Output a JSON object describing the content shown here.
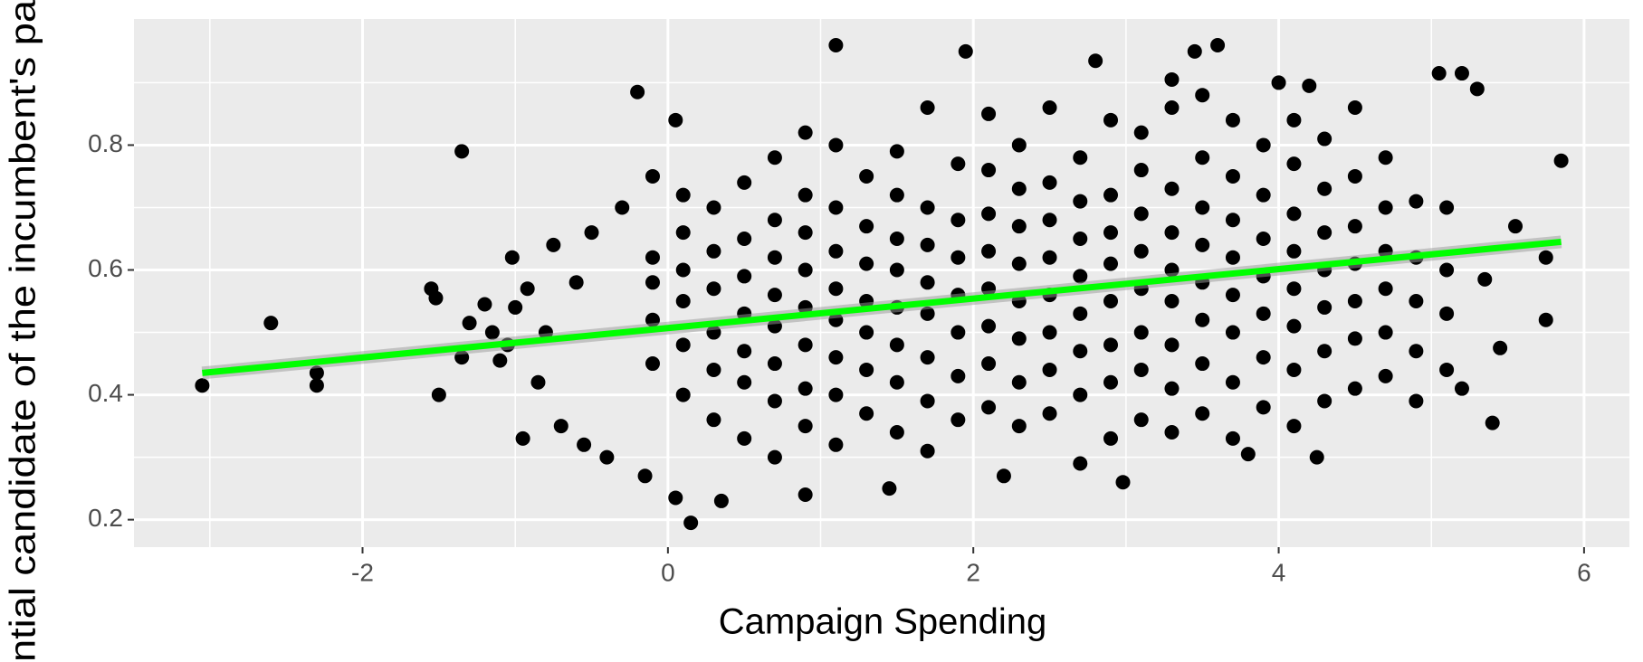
{
  "chart_data": {
    "type": "scatter",
    "x_label": "Campaign Spending",
    "y_label": "ntial candidate of the incumbent's pa",
    "color": "#000000",
    "xlim": [
      -3.497,
      6.297
    ],
    "ylim": [
      0.156,
      1.002
    ],
    "xticks": [
      -2,
      0,
      2,
      4,
      6
    ],
    "yticks": [
      0.2,
      0.4,
      0.6,
      0.8
    ],
    "grid": true,
    "x": [
      -3.05,
      -2.6,
      -2.3,
      -2.3,
      -1.55,
      -1.52,
      -1.5,
      -1.35,
      -1.35,
      -1.3,
      -1.2,
      -1.15,
      -1.1,
      -1.05,
      -1.02,
      -1.0,
      -0.95,
      -0.92,
      -0.85,
      -0.8,
      -0.75,
      -0.7,
      -0.6,
      -0.55,
      -0.5,
      -0.4,
      -0.3,
      -0.2,
      -0.15,
      -0.1,
      0.05,
      0.05,
      0.15,
      0.35,
      1.1,
      1.95,
      2.8,
      3.45,
      3.6,
      5.05,
      5.2,
      5.3,
      5.85,
      5.75,
      5.75,
      5.55,
      5.4,
      5.45,
      5.35,
      5.2,
      4.0,
      4.2,
      3.3,
      2.2,
      1.45,
      2.98,
      0.9,
      4.25,
      3.8,
      -0.1,
      -0.1,
      -0.1,
      -0.1,
      0.1,
      0.1,
      0.1,
      0.1,
      0.1,
      0.1,
      0.3,
      0.3,
      0.3,
      0.3,
      0.3,
      0.3,
      0.5,
      0.5,
      0.5,
      0.5,
      0.5,
      0.5,
      0.5,
      0.7,
      0.7,
      0.7,
      0.7,
      0.7,
      0.7,
      0.7,
      0.7,
      0.9,
      0.9,
      0.9,
      0.9,
      0.9,
      0.9,
      0.9,
      0.9,
      1.1,
      1.1,
      1.1,
      1.1,
      1.1,
      1.1,
      1.1,
      1.1,
      1.3,
      1.3,
      1.3,
      1.3,
      1.3,
      1.3,
      1.3,
      1.5,
      1.5,
      1.5,
      1.5,
      1.5,
      1.5,
      1.5,
      1.5,
      1.7,
      1.7,
      1.7,
      1.7,
      1.7,
      1.7,
      1.7,
      1.7,
      1.9,
      1.9,
      1.9,
      1.9,
      1.9,
      1.9,
      1.9,
      2.1,
      2.1,
      2.1,
      2.1,
      2.1,
      2.1,
      2.1,
      2.1,
      2.3,
      2.3,
      2.3,
      2.3,
      2.3,
      2.3,
      2.3,
      2.3,
      2.5,
      2.5,
      2.5,
      2.5,
      2.5,
      2.5,
      2.5,
      2.5,
      2.7,
      2.7,
      2.7,
      2.7,
      2.7,
      2.7,
      2.7,
      2.7,
      2.9,
      2.9,
      2.9,
      2.9,
      2.9,
      2.9,
      2.9,
      2.9,
      3.1,
      3.1,
      3.1,
      3.1,
      3.1,
      3.1,
      3.1,
      3.1,
      3.3,
      3.3,
      3.3,
      3.3,
      3.3,
      3.3,
      3.3,
      3.3,
      3.5,
      3.5,
      3.5,
      3.5,
      3.5,
      3.5,
      3.5,
      3.5,
      3.7,
      3.7,
      3.7,
      3.7,
      3.7,
      3.7,
      3.7,
      3.7,
      3.9,
      3.9,
      3.9,
      3.9,
      3.9,
      3.9,
      3.9,
      4.1,
      4.1,
      4.1,
      4.1,
      4.1,
      4.1,
      4.1,
      4.1,
      4.3,
      4.3,
      4.3,
      4.3,
      4.3,
      4.3,
      4.3,
      4.5,
      4.5,
      4.5,
      4.5,
      4.5,
      4.5,
      4.5,
      4.7,
      4.7,
      4.7,
      4.7,
      4.7,
      4.7,
      4.9,
      4.9,
      4.9,
      4.9,
      4.9,
      5.1,
      5.1,
      5.1,
      5.1
    ],
    "values": [
      0.415,
      0.515,
      0.435,
      0.415,
      0.57,
      0.555,
      0.4,
      0.79,
      0.46,
      0.515,
      0.545,
      0.5,
      0.455,
      0.48,
      0.62,
      0.54,
      0.33,
      0.57,
      0.42,
      0.5,
      0.64,
      0.35,
      0.58,
      0.32,
      0.66,
      0.3,
      0.7,
      0.885,
      0.27,
      0.75,
      0.84,
      0.235,
      0.195,
      0.23,
      0.96,
      0.95,
      0.935,
      0.95,
      0.96,
      0.915,
      0.915,
      0.89,
      0.775,
      0.52,
      0.62,
      0.67,
      0.355,
      0.475,
      0.585,
      0.41,
      0.9,
      0.895,
      0.905,
      0.27,
      0.25,
      0.26,
      0.24,
      0.3,
      0.305,
      0.45,
      0.52,
      0.58,
      0.62,
      0.4,
      0.48,
      0.55,
      0.6,
      0.66,
      0.72,
      0.36,
      0.44,
      0.5,
      0.57,
      0.63,
      0.7,
      0.33,
      0.42,
      0.47,
      0.53,
      0.59,
      0.65,
      0.74,
      0.3,
      0.39,
      0.45,
      0.51,
      0.56,
      0.62,
      0.68,
      0.78,
      0.35,
      0.41,
      0.48,
      0.54,
      0.6,
      0.66,
      0.72,
      0.82,
      0.32,
      0.4,
      0.46,
      0.52,
      0.57,
      0.63,
      0.7,
      0.8,
      0.37,
      0.44,
      0.5,
      0.55,
      0.61,
      0.67,
      0.75,
      0.34,
      0.42,
      0.48,
      0.54,
      0.6,
      0.65,
      0.72,
      0.79,
      0.31,
      0.39,
      0.46,
      0.53,
      0.58,
      0.64,
      0.7,
      0.86,
      0.36,
      0.43,
      0.5,
      0.56,
      0.62,
      0.68,
      0.77,
      0.38,
      0.45,
      0.51,
      0.57,
      0.63,
      0.69,
      0.76,
      0.85,
      0.35,
      0.42,
      0.49,
      0.55,
      0.61,
      0.67,
      0.73,
      0.8,
      0.37,
      0.44,
      0.5,
      0.56,
      0.62,
      0.68,
      0.74,
      0.86,
      0.29,
      0.4,
      0.47,
      0.53,
      0.59,
      0.65,
      0.71,
      0.78,
      0.33,
      0.42,
      0.48,
      0.55,
      0.61,
      0.66,
      0.72,
      0.84,
      0.36,
      0.44,
      0.5,
      0.57,
      0.63,
      0.69,
      0.76,
      0.82,
      0.34,
      0.41,
      0.48,
      0.55,
      0.6,
      0.66,
      0.73,
      0.86,
      0.37,
      0.45,
      0.52,
      0.58,
      0.64,
      0.7,
      0.78,
      0.88,
      0.33,
      0.42,
      0.5,
      0.56,
      0.62,
      0.68,
      0.75,
      0.84,
      0.38,
      0.46,
      0.53,
      0.59,
      0.65,
      0.72,
      0.8,
      0.35,
      0.44,
      0.51,
      0.57,
      0.63,
      0.69,
      0.77,
      0.84,
      0.39,
      0.47,
      0.54,
      0.6,
      0.66,
      0.73,
      0.81,
      0.41,
      0.49,
      0.55,
      0.61,
      0.67,
      0.75,
      0.86,
      0.43,
      0.5,
      0.57,
      0.63,
      0.7,
      0.78,
      0.39,
      0.47,
      0.55,
      0.62,
      0.71,
      0.44,
      0.53,
      0.6,
      0.7
    ],
    "trend": {
      "x": [
        -3.05,
        5.85
      ],
      "values": [
        0.435,
        0.645
      ],
      "color": "#00ff00"
    }
  }
}
